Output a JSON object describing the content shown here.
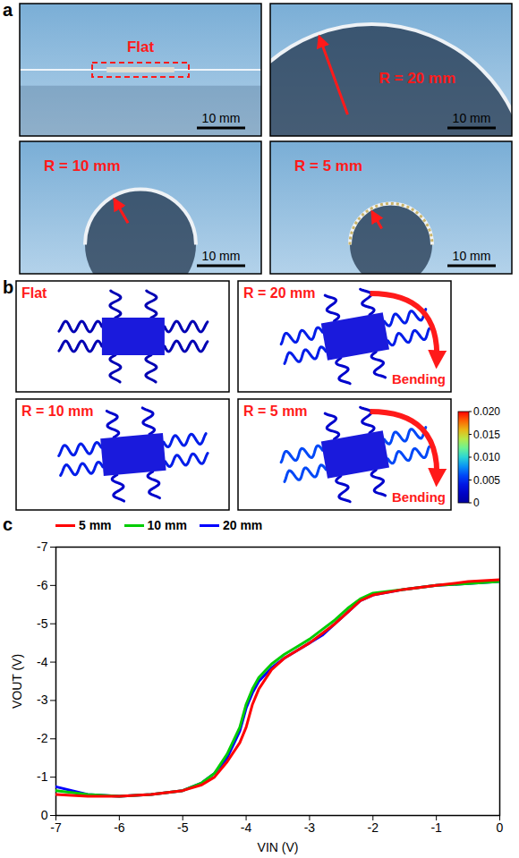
{
  "panels": [
    {
      "letter": "a",
      "photos": [
        {
          "label": "Flat",
          "scale_bar": "10 mm"
        },
        {
          "label": "R = 20 mm",
          "scale_bar": "10 mm"
        },
        {
          "label": "R = 10 mm",
          "scale_bar": "10 mm"
        },
        {
          "label": "R = 5 mm",
          "scale_bar": "10 mm"
        }
      ]
    },
    {
      "letter": "b",
      "simulations": [
        {
          "label": "Flat"
        },
        {
          "label": "R = 20 mm",
          "annotation": "Bending"
        },
        {
          "label": "R = 10 mm"
        },
        {
          "label": "R = 5 mm",
          "annotation": "Bending"
        }
      ],
      "colorbar": {
        "range": [
          0,
          0.02
        ],
        "ticks": [
          {
            "value": 0.02,
            "label": "0.020"
          },
          0.015,
          {
            "value": 0.01,
            "label": "0.010"
          },
          0.005,
          0
        ]
      }
    }
  ],
  "chart_data": {
    "panel": "c",
    "type": "line",
    "x_label": "VIN (V)",
    "y_label": "VOUT (V)",
    "x": [
      -7,
      -6.5,
      -6,
      -5.5,
      -5,
      -4.7,
      -4.5,
      -4.3,
      -4.1,
      -4.0,
      -3.9,
      -3.8,
      -3.6,
      -3.4,
      -3.2,
      -3,
      -2.8,
      -2.6,
      -2.4,
      -2.2,
      -2,
      -1.5,
      -1,
      -0.5,
      0
    ],
    "series": [
      {
        "name": "5 mm",
        "color": "#ff0000",
        "values": [
          -0.55,
          -0.5,
          -0.5,
          -0.55,
          -0.65,
          -0.8,
          -1.0,
          -1.4,
          -1.9,
          -2.3,
          -2.9,
          -3.3,
          -3.8,
          -4.1,
          -4.3,
          -4.5,
          -4.75,
          -5.0,
          -5.3,
          -5.6,
          -5.75,
          -5.9,
          -6.0,
          -6.1,
          -6.15
        ]
      },
      {
        "name": "10 mm",
        "color": "#00cc00",
        "values": [
          -0.65,
          -0.55,
          -0.5,
          -0.55,
          -0.65,
          -0.85,
          -1.1,
          -1.6,
          -2.3,
          -2.9,
          -3.3,
          -3.6,
          -3.95,
          -4.2,
          -4.4,
          -4.6,
          -4.85,
          -5.1,
          -5.4,
          -5.65,
          -5.8,
          -5.9,
          -6.0,
          -6.05,
          -6.1
        ]
      },
      {
        "name": "20 mm",
        "color": "#0000ff",
        "values": [
          -0.75,
          -0.55,
          -0.5,
          -0.55,
          -0.65,
          -0.85,
          -1.1,
          -1.5,
          -2.2,
          -2.8,
          -3.2,
          -3.5,
          -3.85,
          -4.1,
          -4.3,
          -4.5,
          -4.7,
          -5.0,
          -5.3,
          -5.6,
          -5.75,
          -5.9,
          -6.0,
          -6.05,
          -6.1
        ]
      }
    ],
    "xlim": [
      -7,
      0
    ],
    "ylim": [
      0,
      -7
    ],
    "xticks": [
      -7,
      -6,
      -5,
      -4,
      -3,
      -2,
      -1,
      0
    ],
    "yticks": [
      0,
      -1,
      -2,
      -3,
      -4,
      -5,
      -6,
      -7
    ],
    "legend": "top",
    "grid": false
  }
}
